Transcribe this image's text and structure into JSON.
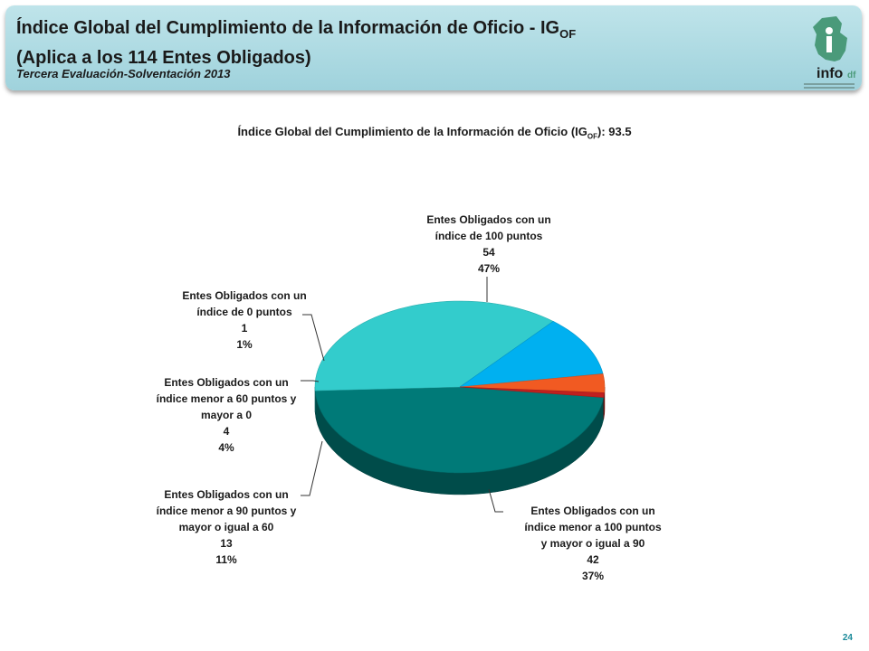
{
  "header": {
    "title_line1": "Índice Global del Cumplimiento de la Información de Oficio - IG",
    "title_sub": "OF",
    "title_line2": "(Aplica a los 114 Entes Obligados)",
    "subtitle": "Tercera Evaluación-Solventación 2013",
    "logo_text": "info",
    "logo_suffix": "df"
  },
  "chart_data": {
    "type": "pie",
    "title_prefix": "Índice Global del Cumplimiento de la Información de Oficio (IG",
    "title_sub": "OF",
    "title_suffix": "): 93.5",
    "slices": [
      {
        "label_line1": "Entes Obligados con un",
        "label_line2": "índice de 100  puntos",
        "label_line3": "",
        "value": 54,
        "percent": "47%",
        "color": "#007a78"
      },
      {
        "label_line1": "Entes Obligados con un",
        "label_line2": "índice  menor a 100  puntos",
        "label_line3": "y mayor o igual a 90",
        "value": 42,
        "percent": "37%",
        "color": "#33cccc"
      },
      {
        "label_line1": "Entes Obligados con un",
        "label_line2": "índice menor a 90 puntos y",
        "label_line3": "mayor o igual a 60",
        "value": 13,
        "percent": "11%",
        "color": "#00b0f0"
      },
      {
        "label_line1": "Entes Obligados con un",
        "label_line2": "índice menor a 60 puntos y",
        "label_line3": "mayor a 0",
        "value": 4,
        "percent": "4%",
        "color": "#f15a22"
      },
      {
        "label_line1": "Entes Obligados con un",
        "label_line2": "índice de 0 puntos",
        "label_line3": "",
        "value": 1,
        "percent": "1%",
        "color": "#c0201f"
      }
    ]
  },
  "footer": {
    "page_number": "24"
  }
}
